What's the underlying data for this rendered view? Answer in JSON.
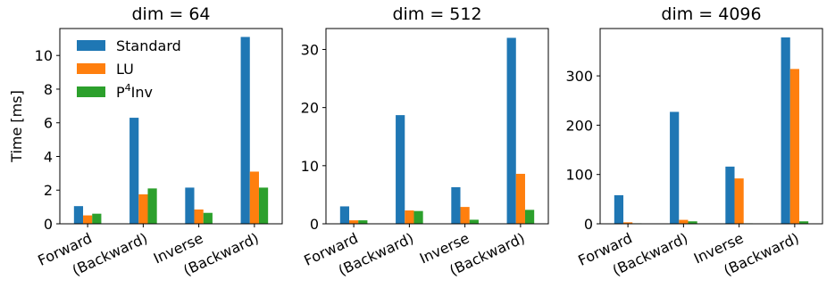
{
  "figure": {
    "ylabel": "Time [ms]",
    "legend": {
      "placement": "upper-left",
      "panel": 0,
      "entries": [
        {
          "name": "Standard",
          "label_main": "Standard",
          "label_sup": ""
        },
        {
          "name": "LU",
          "label_main": "LU",
          "label_sup": ""
        },
        {
          "name": "P4Inv",
          "label_main": "P",
          "label_sup": "4",
          "label_tail": "Inv"
        }
      ]
    }
  },
  "chart_data": [
    {
      "type": "bar",
      "title": "dim = 64",
      "categories": [
        "Forward",
        "(Backward)",
        "Inverse",
        "(Backward)"
      ],
      "series": [
        {
          "name": "Standard",
          "color": "#1f77b4",
          "values": [
            1.05,
            6.3,
            2.15,
            11.1
          ]
        },
        {
          "name": "LU",
          "color": "#ff7f0e",
          "values": [
            0.5,
            1.75,
            0.85,
            3.1
          ]
        },
        {
          "name": "P4Inv",
          "color": "#2ca02c",
          "values": [
            0.6,
            2.1,
            0.65,
            2.15
          ]
        }
      ],
      "ylim": [
        0,
        11.6
      ],
      "yticks": [
        0,
        2,
        4,
        6,
        8,
        10
      ],
      "ylabel": "Time [ms]",
      "grid": false
    },
    {
      "type": "bar",
      "title": "dim = 512",
      "categories": [
        "Forward",
        "(Backward)",
        "Inverse",
        "(Backward)"
      ],
      "series": [
        {
          "name": "Standard",
          "color": "#1f77b4",
          "values": [
            3.0,
            18.7,
            6.3,
            32.0
          ]
        },
        {
          "name": "LU",
          "color": "#ff7f0e",
          "values": [
            0.6,
            2.3,
            2.9,
            8.6
          ]
        },
        {
          "name": "P4Inv",
          "color": "#2ca02c",
          "values": [
            0.6,
            2.2,
            0.7,
            2.4
          ]
        }
      ],
      "ylim": [
        0,
        33.6
      ],
      "yticks": [
        0,
        10,
        20,
        30
      ],
      "grid": false
    },
    {
      "type": "bar",
      "title": "dim = 4096",
      "categories": [
        "Forward",
        "(Backward)",
        "Inverse",
        "(Backward)"
      ],
      "series": [
        {
          "name": "Standard",
          "color": "#1f77b4",
          "values": [
            58,
            227,
            116,
            378
          ]
        },
        {
          "name": "LU",
          "color": "#ff7f0e",
          "values": [
            3,
            8,
            92,
            314
          ]
        },
        {
          "name": "P4Inv",
          "color": "#2ca02c",
          "values": [
            1,
            5,
            1,
            5
          ]
        }
      ],
      "ylim": [
        0,
        396
      ],
      "yticks": [
        0,
        100,
        200,
        300
      ],
      "grid": false
    }
  ]
}
